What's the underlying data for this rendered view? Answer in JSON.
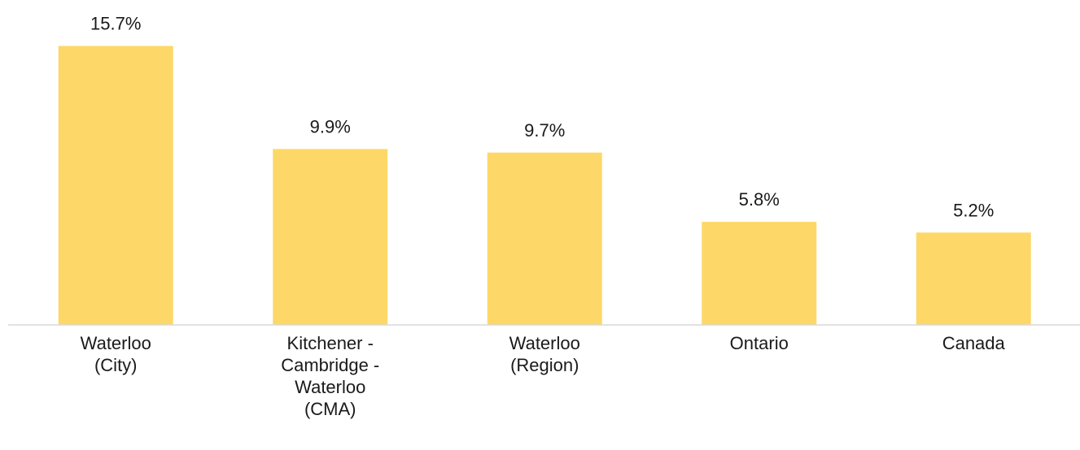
{
  "chart_data": {
    "type": "bar",
    "categories": [
      "Waterloo\n(City)",
      "Kitchener -\nCambridge -\nWaterloo\n(CMA)",
      "Waterloo\n(Region)",
      "Ontario",
      "Canada"
    ],
    "values": [
      15.7,
      9.9,
      9.7,
      5.8,
      5.2
    ],
    "value_labels": [
      "15.7%",
      "9.9%",
      "9.7%",
      "5.8%",
      "5.2%"
    ],
    "color": "#fdd868",
    "ylim": [
      0,
      16
    ]
  }
}
